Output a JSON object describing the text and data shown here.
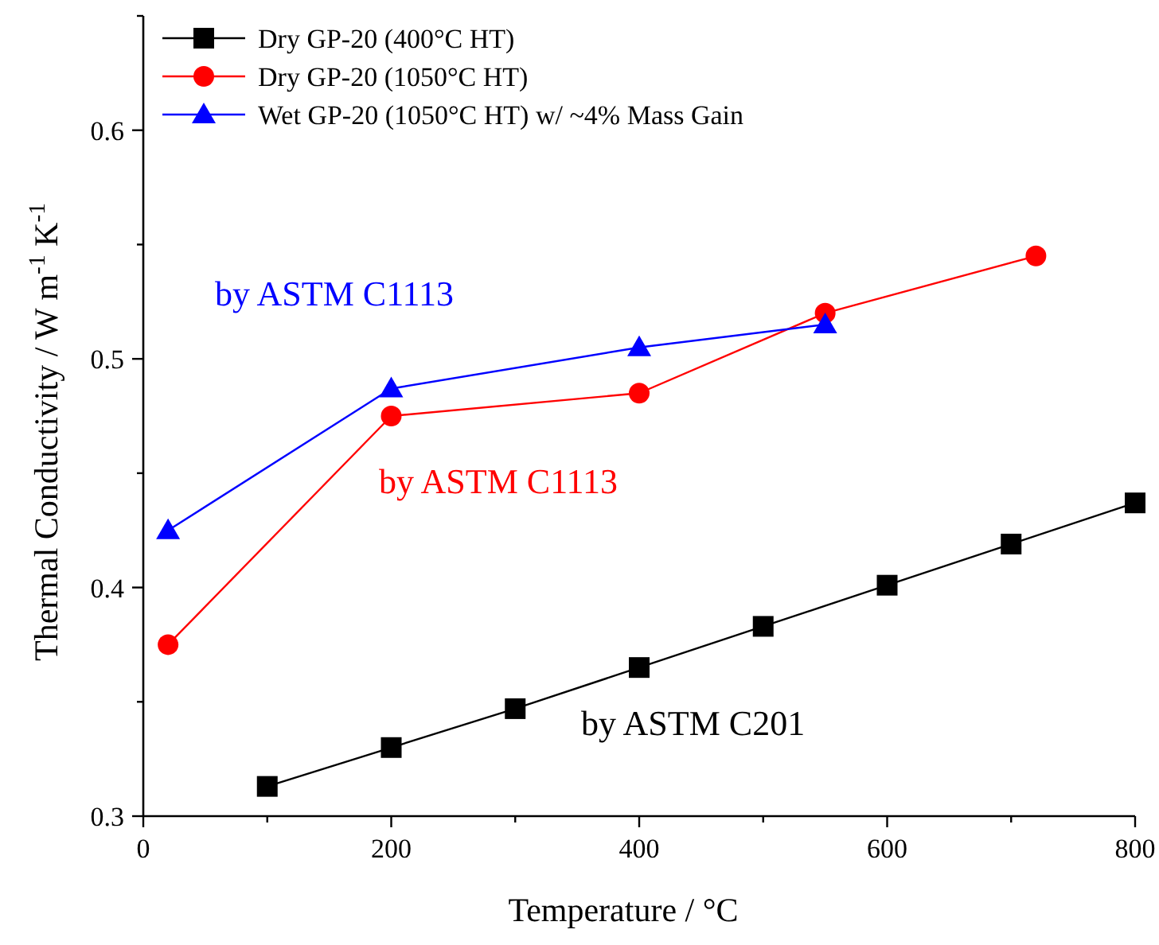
{
  "chart_data": {
    "type": "line",
    "xlabel": "Temperature / °C",
    "ylabel": "Thermal Conductivity / W m$^{-1}$ K$^{-1}$",
    "xlim": [
      0,
      800
    ],
    "ylim": [
      0.3,
      0.65
    ],
    "xticks": [
      0,
      {
        "value": 100,
        "label": null
      },
      200,
      {
        "value": 300,
        "label": null
      },
      400,
      {
        "value": 500,
        "label": null
      },
      600,
      {
        "value": 700,
        "label": null
      },
      800
    ],
    "yticks": [
      0.3,
      {
        "value": 0.35,
        "label": null
      },
      0.4,
      {
        "value": 0.45,
        "label": null
      },
      0.5,
      {
        "value": 0.55,
        "label": null
      },
      0.6,
      {
        "value": 0.65,
        "label": null
      }
    ],
    "grid": false,
    "legend": "top left",
    "line_style": "solid",
    "series": [
      {
        "name": "Dry GP-20 (400°C HT)",
        "color": "#000000",
        "marker": "square",
        "x": [
          100,
          200,
          300,
          400,
          500,
          600,
          700,
          800
        ],
        "values": [
          0.313,
          0.33,
          0.347,
          0.365,
          0.383,
          0.401,
          0.419,
          0.437
        ]
      },
      {
        "name": "Dry GP-20 (1050°C HT)",
        "color": "#ff0000",
        "marker": "circle",
        "x": [
          20,
          200,
          400,
          550,
          720
        ],
        "values": [
          0.375,
          0.475,
          0.485,
          0.52,
          0.545
        ]
      },
      {
        "name": "Wet GP-20 (1050°C HT) w/ ~4% Mass Gain",
        "color": "#0000ff",
        "marker": "triangle",
        "x": [
          20,
          200,
          400,
          550
        ],
        "values": [
          0.425,
          0.487,
          0.505,
          0.515
        ]
      }
    ],
    "annotations": [
      "by ASTM C201",
      "by ASTM C1113",
      "by ASTM C1113"
    ]
  }
}
